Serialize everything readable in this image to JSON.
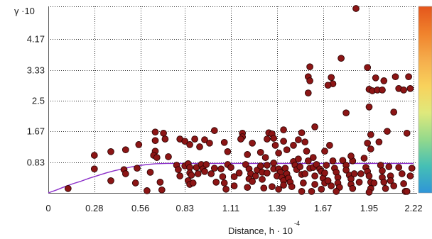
{
  "chart_data": {
    "type": "scatter",
    "ylabel": "γ ·10",
    "xlabel": "Distance, h · 10",
    "xlabel_exponent": "-4",
    "xlim": [
      0,
      2.22
    ],
    "ylim": [
      0,
      5.0
    ],
    "grid": true,
    "x_ticks": [
      "0",
      "0.28",
      "0.56",
      "0.83",
      "1.11",
      "1.39",
      "1.67",
      "1.95",
      "2.22"
    ],
    "y_ticks": [
      "0.83",
      "1.67",
      "2.5",
      "3.33",
      "4.17"
    ],
    "points": [
      [
        0.12,
        0.12
      ],
      [
        0.28,
        1.02
      ],
      [
        0.28,
        0.65
      ],
      [
        0.38,
        1.12
      ],
      [
        0.38,
        0.33
      ],
      [
        0.47,
        1.17
      ],
      [
        0.46,
        0.63
      ],
      [
        0.47,
        0.52
      ],
      [
        0.53,
        0.27
      ],
      [
        0.54,
        0.67
      ],
      [
        0.55,
        1.31
      ],
      [
        0.65,
        1.65
      ],
      [
        0.65,
        1.42
      ],
      [
        0.65,
        1.13
      ],
      [
        0.64,
        1.02
      ],
      [
        0.66,
        0.96
      ],
      [
        0.62,
        0.56
      ],
      [
        0.6,
        0.06
      ],
      [
        0.68,
        0.29
      ],
      [
        0.69,
        0.08
      ],
      [
        0.7,
        1.62
      ],
      [
        0.71,
        1.46
      ],
      [
        0.73,
        0.98
      ],
      [
        0.78,
        0.75
      ],
      [
        0.79,
        0.63
      ],
      [
        0.8,
        0.46
      ],
      [
        0.8,
        1.46
      ],
      [
        0.83,
        1.4
      ],
      [
        0.83,
        0.73
      ],
      [
        0.85,
        0.79
      ],
      [
        0.86,
        0.69
      ],
      [
        0.86,
        0.54
      ],
      [
        0.87,
        0.48
      ],
      [
        0.85,
        0.33
      ],
      [
        0.86,
        0.23
      ],
      [
        0.88,
        0.27
      ],
      [
        0.9,
        0.69
      ],
      [
        0.91,
        0.52
      ],
      [
        0.93,
        0.77
      ],
      [
        0.94,
        0.65
      ],
      [
        0.95,
        0.58
      ],
      [
        0.96,
        0.77
      ],
      [
        0.95,
        1.44
      ],
      [
        0.89,
        1.46
      ],
      [
        0.86,
        1.31
      ],
      [
        0.92,
        1.25
      ],
      [
        0.98,
        1.35
      ],
      [
        1.01,
        1.69
      ],
      [
        0.99,
        0.52
      ],
      [
        1.01,
        0.67
      ],
      [
        1.05,
        0.65
      ],
      [
        1.06,
        0.44
      ],
      [
        1.07,
        0.27
      ],
      [
        1.07,
        1.37
      ],
      [
        1.02,
        0.29
      ],
      [
        1.08,
        0.1
      ],
      [
        1.09,
        1.12
      ],
      [
        1.09,
        0.77
      ],
      [
        1.11,
        0.69
      ],
      [
        1.13,
        0.44
      ],
      [
        1.13,
        0.19
      ],
      [
        1.16,
        0.54
      ],
      [
        1.18,
        1.62
      ],
      [
        1.18,
        1.52
      ],
      [
        1.17,
        1.46
      ],
      [
        1.21,
        1.04
      ],
      [
        1.2,
        0.77
      ],
      [
        1.22,
        0.65
      ],
      [
        1.23,
        0.52
      ],
      [
        1.22,
        0.38
      ],
      [
        1.21,
        0.15
      ],
      [
        1.24,
        0.31
      ],
      [
        1.26,
        0.46
      ],
      [
        1.27,
        0.62
      ],
      [
        1.29,
        0.73
      ],
      [
        1.3,
        0.56
      ],
      [
        1.3,
        0.37
      ],
      [
        1.31,
        0.13
      ],
      [
        1.29,
        1.1
      ],
      [
        1.32,
        0.96
      ],
      [
        1.33,
        0.75
      ],
      [
        1.33,
        0.54
      ],
      [
        1.33,
        1.46
      ],
      [
        1.34,
        1.63
      ],
      [
        1.24,
        1.35
      ],
      [
        1.36,
        1.6
      ],
      [
        1.37,
        1.48
      ],
      [
        1.38,
        1.29
      ],
      [
        1.4,
        1.08
      ],
      [
        1.37,
        0.81
      ],
      [
        1.37,
        0.65
      ],
      [
        1.4,
        0.65
      ],
      [
        1.41,
        0.56
      ],
      [
        1.39,
        0.46
      ],
      [
        1.42,
        0.42
      ],
      [
        1.43,
        0.33
      ],
      [
        1.43,
        0.21
      ],
      [
        1.4,
        0.1
      ],
      [
        1.36,
        0.17
      ],
      [
        1.44,
        0.67
      ],
      [
        1.45,
        0.52
      ],
      [
        1.46,
        0.4
      ],
      [
        1.47,
        0.29
      ],
      [
        1.48,
        0.17
      ],
      [
        1.43,
        1.71
      ],
      [
        1.43,
        1.4
      ],
      [
        1.45,
        1.17
      ],
      [
        1.49,
        0.85
      ],
      [
        1.5,
        0.75
      ],
      [
        1.51,
        0.63
      ],
      [
        1.52,
        0.92
      ],
      [
        1.53,
        0.71
      ],
      [
        1.54,
        0.5
      ],
      [
        1.55,
        0.27
      ],
      [
        1.54,
        0.04
      ],
      [
        1.49,
        1.29
      ],
      [
        1.52,
        1.44
      ],
      [
        1.54,
        1.63
      ],
      [
        1.56,
        1.38
      ],
      [
        1.57,
        1.13
      ],
      [
        1.56,
        0.52
      ],
      [
        1.58,
        0.87
      ],
      [
        1.59,
        0.67
      ],
      [
        1.58,
        3.15
      ],
      [
        1.58,
        2.71
      ],
      [
        1.59,
        3.04
      ],
      [
        1.59,
        3.42
      ],
      [
        1.6,
        0.04
      ],
      [
        1.62,
        1.79
      ],
      [
        1.61,
        0.96
      ],
      [
        1.61,
        0.69
      ],
      [
        1.62,
        0.46
      ],
      [
        1.62,
        0.23
      ],
      [
        1.63,
        0.77
      ],
      [
        1.65,
        0.65
      ],
      [
        1.66,
        0.58
      ],
      [
        1.67,
        0.4
      ],
      [
        1.68,
        0.27
      ],
      [
        1.66,
        0.1
      ],
      [
        1.68,
        0.54
      ],
      [
        1.69,
        0.75
      ],
      [
        1.7,
        0.33
      ],
      [
        1.72,
        0.19
      ],
      [
        1.72,
        3.13
      ],
      [
        1.73,
        2.96
      ],
      [
        1.7,
        2.92
      ],
      [
        1.68,
        1.13
      ],
      [
        1.71,
        1.29
      ],
      [
        1.73,
        0.87
      ],
      [
        1.74,
        0.67
      ],
      [
        1.75,
        0.56
      ],
      [
        1.76,
        0.42
      ],
      [
        1.76,
        0.27
      ],
      [
        1.77,
        0.15
      ],
      [
        1.75,
        0.04
      ],
      [
        1.78,
        3.65
      ],
      [
        1.81,
        2.17
      ],
      [
        1.79,
        0.88
      ],
      [
        1.81,
        0.75
      ],
      [
        1.81,
        0.62
      ],
      [
        1.83,
        0.48
      ],
      [
        1.84,
        0.38
      ],
      [
        1.84,
        0.23
      ],
      [
        1.85,
        0.12
      ],
      [
        1.86,
        0.52
      ],
      [
        1.85,
        0.87
      ],
      [
        1.84,
        1.0
      ],
      [
        1.87,
        5.0
      ],
      [
        1.89,
        0.29
      ],
      [
        1.9,
        0.52
      ],
      [
        1.94,
        3.4
      ],
      [
        1.95,
        2.81
      ],
      [
        1.95,
        2.33
      ],
      [
        1.96,
        1.58
      ],
      [
        1.94,
        1.35
      ],
      [
        1.96,
        1.19
      ],
      [
        1.92,
        0.94
      ],
      [
        1.93,
        0.69
      ],
      [
        1.94,
        0.58
      ],
      [
        1.95,
        0.46
      ],
      [
        1.96,
        0.29
      ],
      [
        1.96,
        0.12
      ],
      [
        1.95,
        0.02
      ],
      [
        1.97,
        2.77
      ],
      [
        1.99,
        3.12
      ],
      [
        2.0,
        2.79
      ],
      [
        2.03,
        2.79
      ],
      [
        2.04,
        3.04
      ],
      [
        2.1,
        2.19
      ],
      [
        2.11,
        3.15
      ],
      [
        2.06,
        1.67
      ],
      [
        2.07,
        0.71
      ],
      [
        2.08,
        0.46
      ],
      [
        2.08,
        0.33
      ],
      [
        2.1,
        0.19
      ],
      [
        2.01,
        1.38
      ],
      [
        2.02,
        0.75
      ],
      [
        2.03,
        0.6
      ],
      [
        2.03,
        0.42
      ],
      [
        2.04,
        0.29
      ],
      [
        2.05,
        0.12
      ],
      [
        1.98,
        0.27
      ],
      [
        2.13,
        2.83
      ],
      [
        2.16,
        2.79
      ],
      [
        2.19,
        3.15
      ],
      [
        2.2,
        2.83
      ],
      [
        2.18,
        1.62
      ],
      [
        2.13,
        0.69
      ],
      [
        2.15,
        0.52
      ],
      [
        2.16,
        0.25
      ],
      [
        2.17,
        0.04
      ],
      [
        2.18,
        0.04
      ],
      [
        2.2,
        0.46
      ],
      [
        2.21,
        0.67
      ]
    ],
    "curve": {
      "x": [
        0,
        0.05,
        0.1,
        0.15,
        0.2,
        0.25,
        0.3,
        0.35,
        0.4,
        0.45,
        0.5,
        0.55,
        0.6,
        0.65,
        0.72,
        2.22
      ],
      "y": [
        0,
        0.08,
        0.17,
        0.25,
        0.32,
        0.4,
        0.47,
        0.54,
        0.6,
        0.65,
        0.7,
        0.74,
        0.77,
        0.79,
        0.8,
        0.8
      ]
    }
  },
  "colors": {
    "point_fill": "#8c1515",
    "point_outline": "#2e0404",
    "curve": "#8b2fc9",
    "grid": "#333333",
    "axis": "#555555",
    "colorbar": [
      "#e4561c",
      "#f0822c",
      "#f5ad4c",
      "#f8d25c",
      "#dfe97c",
      "#93d98c",
      "#45bfb5",
      "#2f95d8"
    ]
  }
}
